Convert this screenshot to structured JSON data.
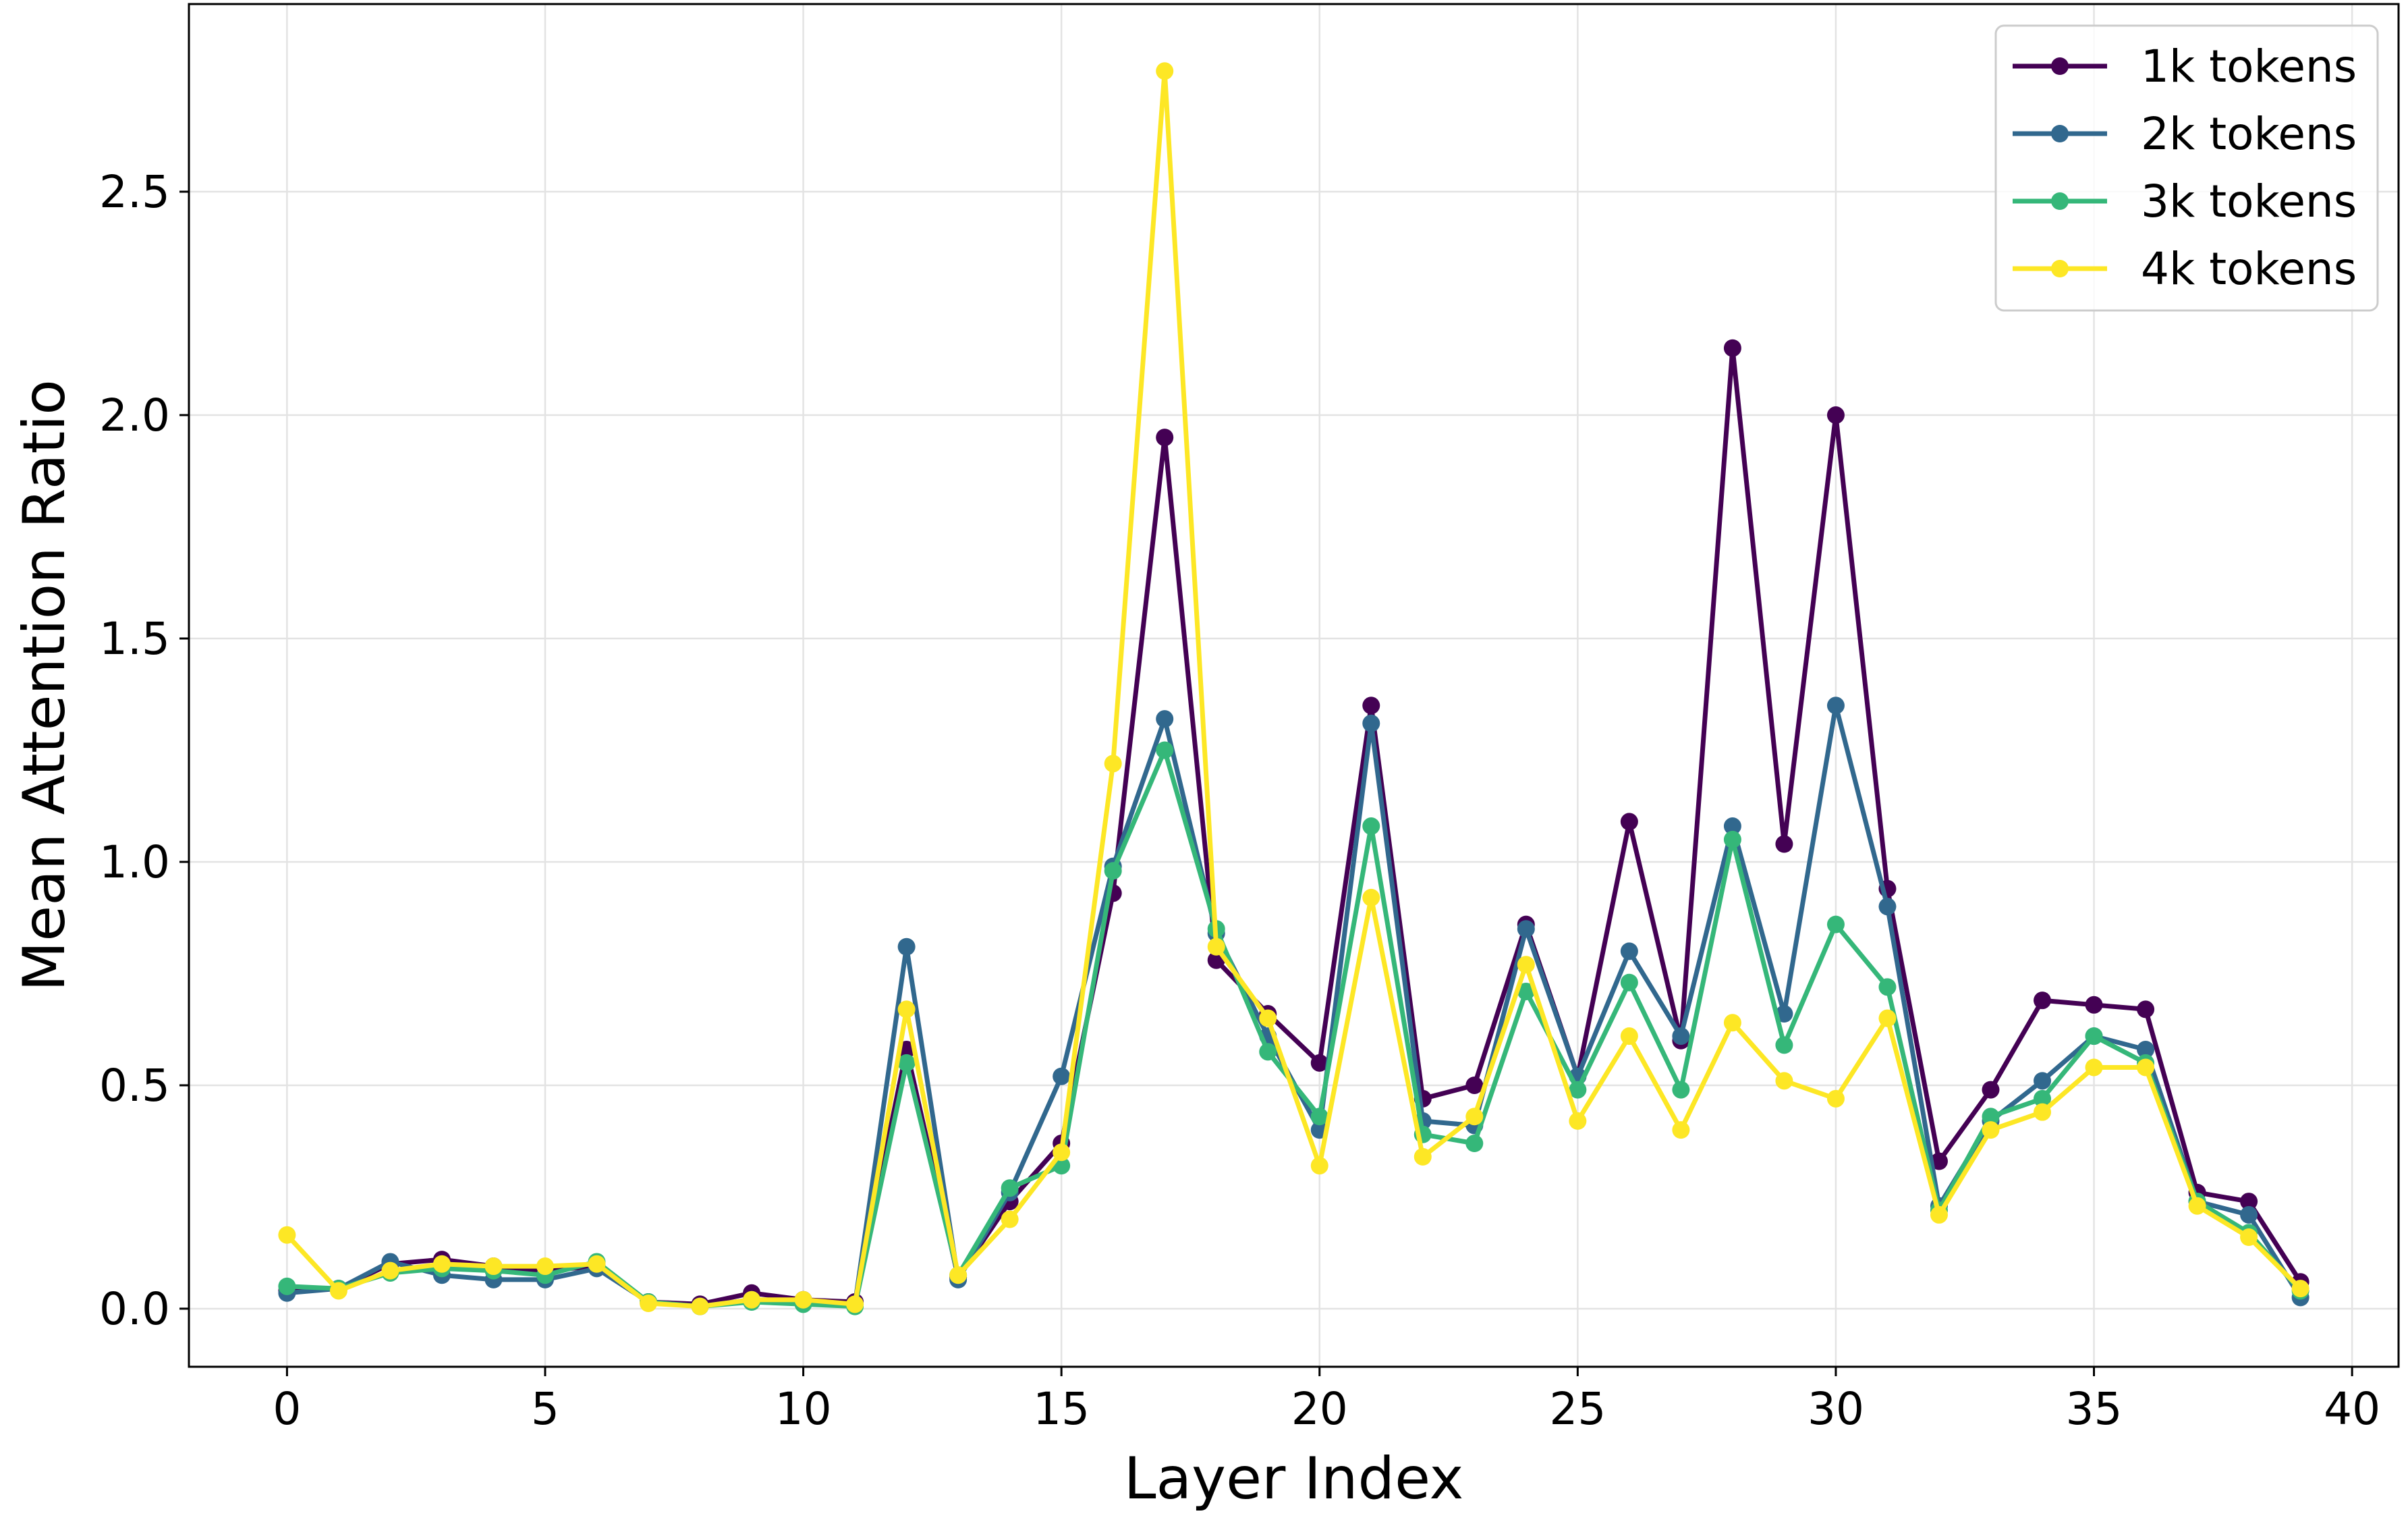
{
  "chart_data": {
    "type": "line",
    "title": "",
    "xlabel": "Layer Index",
    "ylabel": "Mean Attention Ratio",
    "xlim": [
      -1.9,
      40.9
    ],
    "ylim": [
      -0.13,
      2.92
    ],
    "xticks": [
      0,
      5,
      10,
      15,
      20,
      25,
      30,
      35,
      40
    ],
    "xtick_labels": [
      "0",
      "5",
      "10",
      "15",
      "20",
      "25",
      "30",
      "35",
      "40"
    ],
    "yticks": [
      0.0,
      0.5,
      1.0,
      1.5,
      2.0,
      2.5
    ],
    "ytick_labels": [
      "0.0",
      "0.5",
      "1.0",
      "1.5",
      "2.0",
      "2.5"
    ],
    "grid": true,
    "legend_position": "top-right",
    "x": [
      0,
      1,
      2,
      3,
      4,
      5,
      6,
      7,
      8,
      9,
      10,
      11,
      12,
      13,
      14,
      15,
      16,
      17,
      18,
      19,
      20,
      21,
      22,
      23,
      24,
      25,
      26,
      27,
      28,
      29,
      30,
      31,
      32,
      33,
      34,
      35,
      36,
      37,
      38,
      39
    ],
    "series": [
      {
        "name": "1k tokens",
        "color": "#440154",
        "values": [
          0.04,
          0.045,
          0.1,
          0.11,
          0.095,
          0.085,
          0.095,
          0.015,
          0.01,
          0.035,
          0.02,
          0.015,
          0.58,
          0.07,
          0.24,
          0.37,
          0.93,
          1.95,
          0.78,
          0.66,
          0.55,
          1.35,
          0.47,
          0.5,
          0.86,
          0.52,
          1.09,
          0.6,
          2.15,
          1.04,
          2.0,
          0.94,
          0.33,
          0.49,
          0.69,
          0.68,
          0.67,
          0.26,
          0.24,
          0.06
        ]
      },
      {
        "name": "2k tokens",
        "color": "#31688e",
        "values": [
          0.035,
          0.045,
          0.105,
          0.075,
          0.065,
          0.065,
          0.09,
          0.015,
          0.005,
          0.02,
          0.015,
          0.01,
          0.81,
          0.065,
          0.26,
          0.52,
          0.99,
          1.32,
          0.84,
          0.61,
          0.4,
          1.31,
          0.42,
          0.41,
          0.85,
          0.52,
          0.8,
          0.61,
          1.08,
          0.66,
          1.35,
          0.9,
          0.23,
          0.42,
          0.51,
          0.61,
          0.58,
          0.24,
          0.21,
          0.025
        ]
      },
      {
        "name": "3k tokens",
        "color": "#35b779",
        "values": [
          0.05,
          0.045,
          0.08,
          0.09,
          0.085,
          0.075,
          0.105,
          0.015,
          0.005,
          0.015,
          0.01,
          0.005,
          0.55,
          0.075,
          0.27,
          0.32,
          0.98,
          1.25,
          0.85,
          0.575,
          0.43,
          1.08,
          0.39,
          0.37,
          0.71,
          0.49,
          0.73,
          0.49,
          1.05,
          0.59,
          0.86,
          0.72,
          0.22,
          0.43,
          0.47,
          0.61,
          0.55,
          0.24,
          0.17,
          0.04
        ]
      },
      {
        "name": "4k tokens",
        "color": "#fde725",
        "values": [
          0.165,
          0.04,
          0.085,
          0.1,
          0.095,
          0.095,
          0.1,
          0.012,
          0.005,
          0.02,
          0.02,
          0.01,
          0.67,
          0.075,
          0.2,
          0.35,
          1.22,
          2.77,
          0.81,
          0.65,
          0.32,
          0.92,
          0.34,
          0.43,
          0.77,
          0.42,
          0.61,
          0.4,
          0.64,
          0.51,
          0.47,
          0.65,
          0.21,
          0.4,
          0.44,
          0.54,
          0.54,
          0.23,
          0.16,
          0.045
        ]
      }
    ]
  }
}
